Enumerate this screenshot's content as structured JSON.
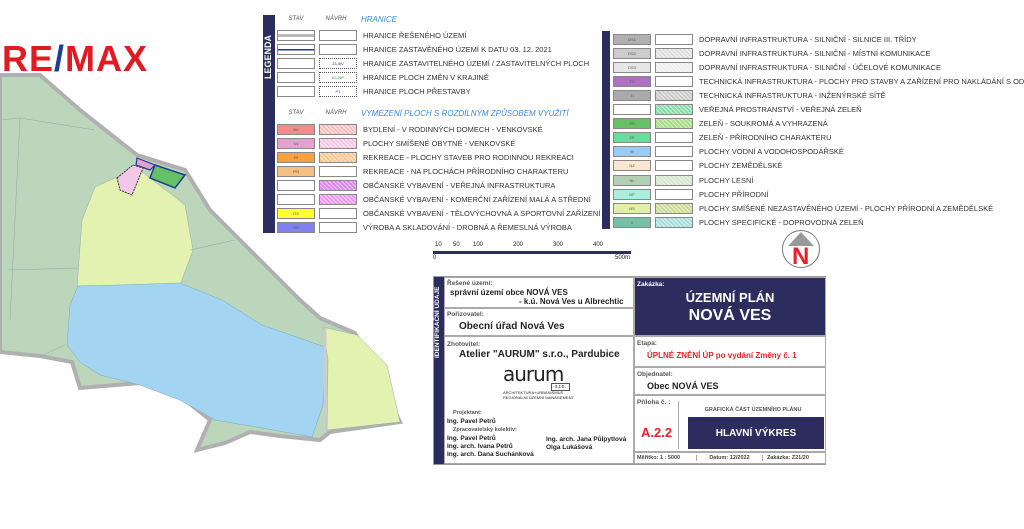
{
  "logo": {
    "text_a": "RE",
    "slash": "/",
    "text_b": "MAX"
  },
  "legend_left": {
    "title": "LEGENDA",
    "col_stav": "STAV",
    "col_navrh": "NÁVRH",
    "section1": "HRANICE",
    "section1_rows": [
      {
        "label": "HRANICE ŘEŠENÉHO ÚZEMÍ",
        "stav": "#bbbbbb",
        "navrh": "#ffffff",
        "code": ""
      },
      {
        "label": "HRANICE ZASTAVĚNÉHO ÚZEMÍ K DATU  03. 12. 2021",
        "stav": "#ffffff",
        "navrh": "#ffffff",
        "code": ""
      },
      {
        "label": "HRANICE ZASTAVITELNÉHO ÚZEMÍ / ZASTAVITELNÝCH PLOCH",
        "stav": "#ffffff",
        "navrh": "#ffffff",
        "code": "Z1-BV"
      },
      {
        "label": "HRANICE PLOCH ZMĚN V KRAJINĚ",
        "stav": "#ffffff",
        "navrh": "#ffffff",
        "code": "K1-NP"
      },
      {
        "label": "HRANICE PLOCH PŘESTAVBY",
        "stav": "#ffffff",
        "navrh": "#ffffff",
        "code": "P1"
      }
    ],
    "section2": "VYMEZENÍ PLOCH S ROZDÍLNÝM ZPŮSOBEM VYUŽITÍ",
    "section2_rows": [
      {
        "label": "BYDLENÍ - V RODINNÝCH DOMECH - VENKOVSKÉ",
        "stav": "#f08c8c",
        "navrh": "#f7c0c0",
        "code": "BV"
      },
      {
        "label": "PLOCHY SMÍŠENÉ OBYTNÉ - VENKOVSKÉ",
        "stav": "#e6a0d0",
        "navrh": "#f4c8e6",
        "code": "SV"
      },
      {
        "label": "REKREACE - PLOCHY STAVEB PRO RODINNOU REKREACI",
        "stav": "#f7a040",
        "navrh": "#fbc890",
        "code": "RI"
      },
      {
        "label": "REKREACE - NA PLOCHÁCH PŘÍRODNÍHO CHARAKTERU",
        "stav": "#f5c080",
        "navrh": "#ffffff",
        "code": "RN"
      },
      {
        "label": "OBČANSKÉ VYBAVENÍ - VEŘEJNÁ INFRASTRUKTURA",
        "stav": "#ffffff",
        "navrh": "#dd88ee",
        "code": ""
      },
      {
        "label": "OBČANSKÉ VYBAVENÍ - KOMERČNÍ ZAŘÍZENÍ MALÁ A STŘEDNÍ",
        "stav": "#ffffff",
        "navrh": "#ee99ee",
        "code": ""
      },
      {
        "label": "OBČANSKÉ VYBAVENÍ - TĚLOVÝCHOVNÁ A SPORTOVNÍ ZAŘÍZENÍ",
        "stav": "#ffff33",
        "navrh": "#ffffff",
        "code": "OS"
      },
      {
        "label": "VÝROBA A SKLADOVÁNÍ - DROBNÁ A ŘEMESLNÁ VÝROBA",
        "stav": "#8080ee",
        "navrh": "#ffffff",
        "code": "VD"
      }
    ]
  },
  "legend_right": {
    "rows": [
      {
        "label": "DOPRAVNÍ INFRASTRUKTURA - SILNIČNÍ - SILNICE III. TŘÍDY",
        "stav": "#b0b0b0",
        "navrh": "#ffffff",
        "code": "DS1"
      },
      {
        "label": "DOPRAVNÍ INFRASTRUKTURA - SILNIČNÍ - MÍSTNÍ KOMUNIKACE",
        "stav": "#cccccc",
        "navrh": "#e0e0e0",
        "code": "DS2"
      },
      {
        "label": "DOPRAVNÍ INFRASTRUKTURA - SILNIČNÍ - ÚČELOVÉ KOMUNIKACE",
        "stav": "#e6e6e6",
        "navrh": "#eeeeee",
        "code": "DS3"
      },
      {
        "label": "TECHNICKÁ INFRASTRUKTURA  - PLOCHY PRO STAVBY A ZAŘÍZENÍ PRO NAKLÁDÁNÍ S ODPADY",
        "stav": "#b070c0",
        "navrh": "#ffffff",
        "code": "TO"
      },
      {
        "label": "TECHNICKÁ INFRASTRUKTURA - INŽENÝRSKÉ SÍTĚ",
        "stav": "#aaaaaa",
        "navrh": "#cccccc",
        "code": "TI"
      },
      {
        "label": "VEŘEJNÁ PROSTRANSTVÍ - VEŘEJNÁ ZELEŇ",
        "stav": "#ffffff",
        "navrh": "#88ddaa",
        "code": ""
      },
      {
        "label": "ZELEŇ - SOUKROMÁ A VYHRAZENÁ",
        "stav": "#66c066",
        "navrh": "#aadd88",
        "code": "ZS"
      },
      {
        "label": "ZELEŇ - PŘÍRODNÍHO CHARAKTERU",
        "stav": "#66dd99",
        "navrh": "#ffffff",
        "code": "ZP"
      },
      {
        "label": "PLOCHY VODNÍ A VODOHOSPODÁŘSKÉ",
        "stav": "#99ccf5",
        "navrh": "#ffffff",
        "code": "W"
      },
      {
        "label": "PLOCHY ZEMĚDĚLSKÉ",
        "stav": "#fbe6d4",
        "navrh": "#ffffff",
        "code": "NZ"
      },
      {
        "label": "PLOCHY LESNÍ",
        "stav": "#b4d0b4",
        "navrh": "#d4e6cc",
        "code": "NL"
      },
      {
        "label": "PLOCHY PŘÍRODNÍ",
        "stav": "#aaeedd",
        "navrh": "#ffffff",
        "code": "NP"
      },
      {
        "label": "PLOCHY SMÍŠENÉ NEZASTAVĚNÉHO ÚZEMÍ - PLOCHY PŘÍRODNÍ A ZEMĚDĚLSKÉ",
        "stav": "#e0f0a8",
        "navrh": "#ccdd99",
        "code": "NS"
      },
      {
        "label": "PLOCHY SPECIFICKÉ - DOPROVODNÁ ZELEŇ",
        "stav": "#77c0a8",
        "navrh": "#aadddd",
        "code": "X"
      }
    ]
  },
  "scale": {
    "ticks": [
      "10",
      "50",
      "100",
      "200",
      "300",
      "400"
    ],
    "zero": "0",
    "end": "500m"
  },
  "north": {
    "letter": "N"
  },
  "title_block": {
    "side": "IDENTIFIKAČNÍ ÚDAJE",
    "reseno_label": "Řešené území:",
    "reseno_1": "správní území obce NOVÁ VES",
    "reseno_2": "- k.ú. Nová Ves u Albrechtic",
    "poriz_label": "Pořizovatel:",
    "poriz": "Obecní úřad Nová Ves",
    "zhot_label": "Zhotovitel:",
    "zhot": "Atelier \"AURUM\" s.r.o., Pardubice",
    "aurum_logo": "aurum",
    "aurum_sro": "s.r.o.",
    "aurum_sub1": "ARCHITEKTURA+URBANISMUS",
    "aurum_sub2": "REGIONÁLNÍ ÚZEMNÍ MANAGEMENT",
    "proj_label": "Projektant:",
    "proj": "Ing. Pavel Petrů",
    "kolektiv_label": "Zpracovatelský kolektiv:",
    "kolektiv": [
      "Ing. Pavel Petrů",
      "Ing. arch. Ivana Petrů",
      "Ing. arch. Dana Suchánková",
      "Ing. arch. Jana Půlpytlová",
      "Olga Lukášová"
    ],
    "zakazka_label": "Zakázka:",
    "title1": "ÚZEMNÍ PLÁN",
    "title2": "NOVÁ VES",
    "etapa_label": "Etapa:",
    "etapa": "ÚPLNÉ ZNĚNÍ ÚP po vydání Změny č. 1",
    "objed_label": "Objednatel:",
    "objed": "Obec  NOVÁ VES",
    "priloha_label": "Příloha č. :",
    "priloha": "A.2.2",
    "graf": "GRAFICKÁ ČÁST ÚZEMNÍHO PLÁNU",
    "vykres": "HLAVNÍ VÝKRES",
    "meritko": "Měřítko:   1 : 5000",
    "datum": "Datum: 12/2022",
    "zakazka": "Zakázka:  Z21/20"
  },
  "colors": {
    "navy": "#2d2c5e",
    "red": "#e8202a",
    "remax_red": "#e11b22",
    "remax_blue": "#1c3f94"
  }
}
